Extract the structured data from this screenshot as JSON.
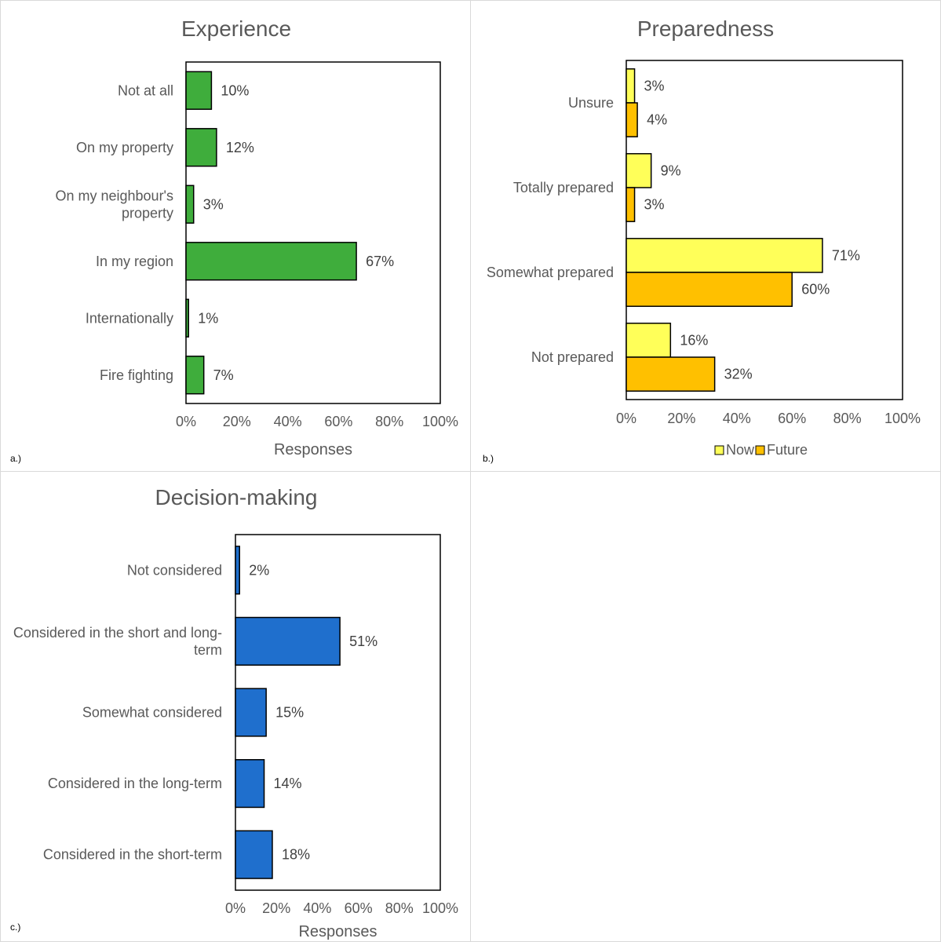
{
  "chart_data": [
    {
      "type": "bar",
      "orientation": "horizontal",
      "title": "Experience",
      "panel_label": "a.)",
      "categories": [
        "Not at all",
        "On my property",
        "On my neighbour's property",
        "In my region",
        "Internationally",
        "Fire fighting"
      ],
      "category_lines": [
        [
          "Not at all"
        ],
        [
          "On my property"
        ],
        [
          "On my neighbour's",
          "property"
        ],
        [
          "In my region"
        ],
        [
          "Internationally"
        ],
        [
          "Fire fighting"
        ]
      ],
      "values": [
        10,
        12,
        3,
        67,
        1,
        7
      ],
      "data_labels": [
        "10%",
        "12%",
        "3%",
        "67%",
        "1%",
        "7%"
      ],
      "xlabel": "Responses",
      "xlim": [
        0,
        100
      ],
      "ticks": [
        "0%",
        "20%",
        "40%",
        "60%",
        "80%",
        "100%"
      ],
      "color": "#3fad3c"
    },
    {
      "type": "bar",
      "orientation": "horizontal",
      "title": "Preparedness",
      "panel_label": "b.)",
      "categories": [
        "Unsure",
        "Totally prepared",
        "Somewhat prepared",
        "Not prepared"
      ],
      "series": [
        {
          "name": "Now",
          "values": [
            3,
            9,
            71,
            16
          ],
          "data_labels": [
            "3%",
            "9%",
            "71%",
            "16%"
          ],
          "color": "#ffff59"
        },
        {
          "name": "Future",
          "values": [
            4,
            3,
            60,
            32
          ],
          "data_labels": [
            "4%",
            "3%",
            "60%",
            "32%"
          ],
          "color": "#ffc000"
        }
      ],
      "xlabel": "",
      "xlim": [
        0,
        100
      ],
      "ticks": [
        "0%",
        "20%",
        "40%",
        "60%",
        "80%",
        "100%"
      ],
      "legend": "bottom"
    },
    {
      "type": "bar",
      "orientation": "horizontal",
      "title": "Decision-making",
      "panel_label": "c.)",
      "categories": [
        "Not considered",
        "Considered in the short and long-term",
        "Somewhat considered",
        "Considered in the long-term",
        "Considered in the short-term"
      ],
      "category_lines": [
        [
          "Not considered"
        ],
        [
          "Considered in the short and long-",
          "term"
        ],
        [
          "Somewhat considered"
        ],
        [
          "Considered in the long-term"
        ],
        [
          "Considered in the short-term"
        ]
      ],
      "values": [
        2,
        51,
        15,
        14,
        18
      ],
      "data_labels": [
        "2%",
        "51%",
        "15%",
        "14%",
        "18%"
      ],
      "xlabel": "Responses",
      "xlim": [
        0,
        100
      ],
      "ticks": [
        "0%",
        "20%",
        "40%",
        "60%",
        "80%",
        "100%"
      ],
      "color": "#1f6fcd"
    }
  ]
}
